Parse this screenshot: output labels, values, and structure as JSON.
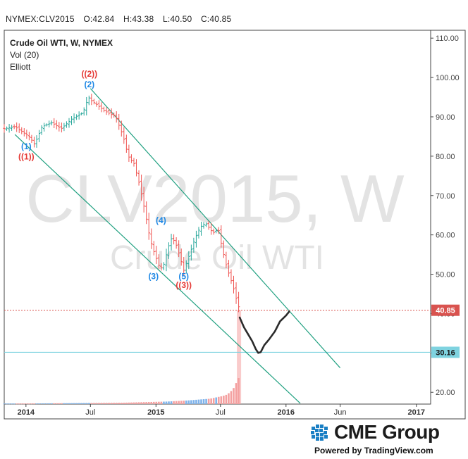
{
  "ohlc_header": {
    "symbol": "NYMEX:CLV2015",
    "open": "O:42.84",
    "high": "H:43.38",
    "low": "L:40.50",
    "close": "C:40.85"
  },
  "legend": {
    "title": "Crude Oil WTI, W, NYMEX",
    "volume_study": "Vol (20)",
    "wave_study": "Elliott"
  },
  "watermark": {
    "line1": "CLV2015, W",
    "line2": "Crude Oil WTI"
  },
  "footer": {
    "brand": "CME Group",
    "powered_by": "Powered by TradingView.com"
  },
  "colors": {
    "up": "#26a69a",
    "down": "#ef5350",
    "trendline": "#20a080",
    "last_price_badge": "#d9534f",
    "level_badge": "#7fd3e0",
    "wave_blue": "#1e88e5",
    "wave_red": "#e53935",
    "volume_up": "#7fb3ea",
    "volume_down": "#f4a0a0"
  },
  "chart_data": {
    "type": "ohlc",
    "symbol": "NYMEX:CLV2015",
    "interval": "W",
    "y_axis": {
      "ticks": [
        "20.00",
        "30.00",
        "40.00",
        "50.00",
        "60.00",
        "70.00",
        "80.00",
        "90.00",
        "100.00",
        "110.00"
      ],
      "ylim": [
        17,
        112
      ]
    },
    "x_axis": {
      "ticks": [
        {
          "label": "2014",
          "date": "2014-01-01"
        },
        {
          "label": "Jul",
          "date": "2014-07-01"
        },
        {
          "label": "2015",
          "date": "2015-01-01"
        },
        {
          "label": "Jul",
          "date": "2015-07-01"
        },
        {
          "label": "2016",
          "date": "2016-01-01"
        },
        {
          "label": "Jun",
          "date": "2016-06-01"
        },
        {
          "label": "2017",
          "date": "2017-01-01"
        }
      ],
      "xlim": [
        "2013-11-01",
        "2017-02-10"
      ]
    },
    "price_path": [
      [
        "2013-11-01",
        87.0
      ],
      [
        "2013-12-01",
        87.5
      ],
      [
        "2014-01-10",
        85.0
      ],
      [
        "2014-01-25",
        83.0
      ],
      [
        "2014-02-15",
        87.5
      ],
      [
        "2014-03-15",
        88.5
      ],
      [
        "2014-04-10",
        87.0
      ],
      [
        "2014-05-10",
        89.5
      ],
      [
        "2014-06-10",
        91.0
      ],
      [
        "2014-06-25",
        95.0
      ],
      [
        "2014-07-05",
        94.0
      ],
      [
        "2014-07-20",
        93.0
      ],
      [
        "2014-08-10",
        91.5
      ],
      [
        "2014-09-10",
        90.0
      ],
      [
        "2014-10-01",
        85.0
      ],
      [
        "2014-10-15",
        80.0
      ],
      [
        "2014-11-01",
        78.0
      ],
      [
        "2014-11-15",
        73.0
      ],
      [
        "2014-12-01",
        66.0
      ],
      [
        "2014-12-15",
        59.0
      ],
      [
        "2014-12-25",
        56.0
      ],
      [
        "2015-01-10",
        52.0
      ],
      [
        "2015-01-20",
        51.5
      ],
      [
        "2015-02-05",
        57.0
      ],
      [
        "2015-02-15",
        59.5
      ],
      [
        "2015-03-01",
        57.0
      ],
      [
        "2015-03-20",
        51.0
      ],
      [
        "2015-04-05",
        55.0
      ],
      [
        "2015-04-20",
        59.0
      ],
      [
        "2015-05-05",
        62.0
      ],
      [
        "2015-05-20",
        63.0
      ],
      [
        "2015-06-10",
        60.5
      ],
      [
        "2015-06-25",
        61.5
      ],
      [
        "2015-07-05",
        57.0
      ],
      [
        "2015-07-15",
        53.0
      ],
      [
        "2015-07-25",
        50.0
      ],
      [
        "2015-08-05",
        47.0
      ],
      [
        "2015-08-15",
        43.5
      ],
      [
        "2015-08-24",
        40.85
      ]
    ],
    "last_price": {
      "value": 40.85,
      "label": "40.85"
    },
    "horizontal_level": {
      "value": 30.16,
      "label": "30.16"
    },
    "trend_channel": [
      {
        "from": [
          "2014-07-01",
          97.2
        ],
        "to": [
          "2016-06-01",
          26.2
        ]
      },
      {
        "from": [
          "2013-12-01",
          85.5
        ],
        "to": [
          "2016-02-10",
          17.2
        ]
      }
    ],
    "projection_path": [
      [
        "2015-08-24",
        39.0
      ],
      [
        "2015-09-05",
        36.5
      ],
      [
        "2015-09-15",
        35.0
      ],
      [
        "2015-09-28",
        33.0
      ],
      [
        "2015-10-08",
        31.0
      ],
      [
        "2015-10-15",
        30.0
      ],
      [
        "2015-10-22",
        30.2
      ],
      [
        "2015-11-01",
        32.0
      ],
      [
        "2015-11-15",
        33.5
      ],
      [
        "2015-12-01",
        35.5
      ],
      [
        "2015-12-15",
        38.0
      ],
      [
        "2016-01-01",
        39.5
      ],
      [
        "2016-01-10",
        40.5
      ]
    ],
    "elliott_waves": [
      {
        "label": "((2))",
        "date": "2014-06-28",
        "price": 100.2,
        "color": "red"
      },
      {
        "label": "(2)",
        "date": "2014-06-28",
        "price": 97.5,
        "color": "blue"
      },
      {
        "label": "(1)",
        "date": "2014-01-02",
        "price": 81.8,
        "color": "blue"
      },
      {
        "label": "((1))",
        "date": "2014-01-02",
        "price": 79.2,
        "color": "red"
      },
      {
        "label": "(4)",
        "date": "2015-01-15",
        "price": 63.0,
        "color": "blue"
      },
      {
        "label": "(3)",
        "date": "2014-12-25",
        "price": 48.8,
        "color": "blue"
      },
      {
        "label": "(5)",
        "date": "2015-03-20",
        "price": 48.8,
        "color": "blue"
      },
      {
        "label": "((3))",
        "date": "2015-03-20",
        "price": 46.5,
        "color": "red"
      }
    ],
    "volume": {
      "series": [
        [
          "2013-11-01",
          2
        ],
        [
          "2014-01-01",
          2
        ],
        [
          "2014-04-01",
          3
        ],
        [
          "2014-07-01",
          4
        ],
        [
          "2014-10-01",
          5
        ],
        [
          "2014-12-01",
          7
        ],
        [
          "2015-02-01",
          9
        ],
        [
          "2015-04-01",
          13
        ],
        [
          "2015-05-01",
          16
        ],
        [
          "2015-06-01",
          19
        ],
        [
          "2015-06-20",
          24
        ],
        [
          "2015-07-05",
          28
        ],
        [
          "2015-07-20",
          34
        ],
        [
          "2015-08-05",
          52
        ],
        [
          "2015-08-24",
          100
        ]
      ]
    }
  }
}
